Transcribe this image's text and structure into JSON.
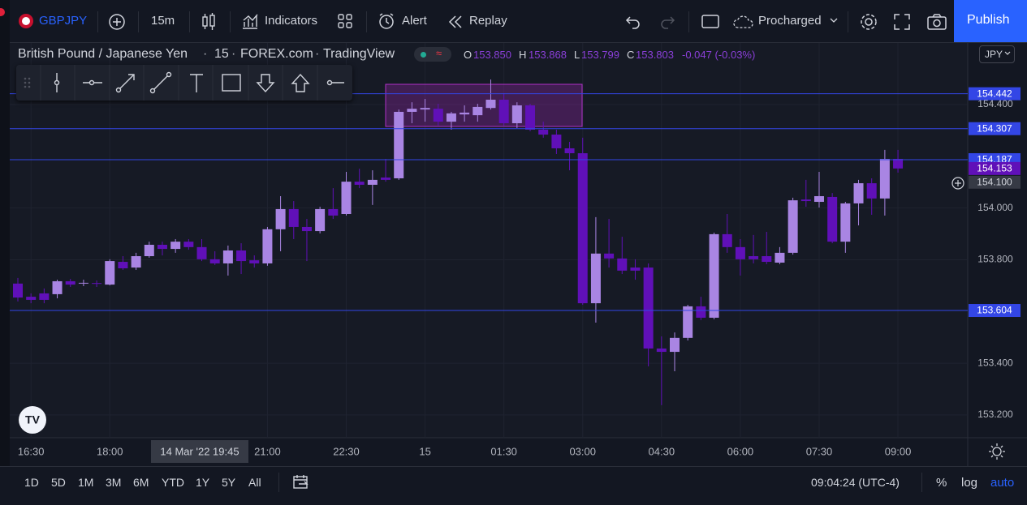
{
  "toolbar": {
    "symbol": "GBPJPY",
    "interval": "15m",
    "indicators": "Indicators",
    "alert": "Alert",
    "replay": "Replay",
    "layout": "Procharged",
    "publish": "Publish"
  },
  "legend": {
    "name": "British Pound / Japanese Yen",
    "interval": "15",
    "exchange": "FOREX.com",
    "source": "TradingView",
    "open_label": "O",
    "open": "153.850",
    "high_label": "H",
    "high": "153.868",
    "low_label": "L",
    "low": "153.799",
    "close_label": "C",
    "close": "153.803",
    "change": "-0.047 (-0.03%)"
  },
  "currency": "JPY",
  "chart_data": {
    "type": "candlestick",
    "categories": [
      null,
      "16:30",
      null,
      null,
      null,
      null,
      null,
      "18:00",
      null,
      null,
      null,
      null,
      null,
      null,
      null,
      null,
      null,
      null,
      null,
      "21:00",
      null,
      null,
      null,
      null,
      null,
      "22:30",
      null,
      null,
      null,
      null,
      null,
      "15",
      null,
      null,
      null,
      null,
      null,
      "01:30",
      null,
      null,
      null,
      null,
      null,
      "03:00",
      null,
      null,
      null,
      null,
      null,
      "04:30",
      null,
      null,
      null,
      null,
      null,
      "06:00",
      null,
      null,
      null,
      null,
      null,
      "07:30",
      null,
      null,
      null,
      null,
      null,
      "09:00"
    ],
    "open": [
      153.708,
      153.657,
      153.67,
      153.667,
      153.717,
      153.708,
      153.71,
      153.704,
      153.792,
      153.77,
      153.814,
      153.858,
      153.842,
      153.87,
      153.849,
      153.802,
      153.786,
      153.836,
      153.798,
      153.786,
      153.918,
      153.996,
      153.927,
      153.911,
      153.996,
      153.977,
      154.102,
      154.09,
      154.118,
      154.115,
      154.372,
      154.381,
      154.384,
      154.334,
      154.362,
      154.359,
      154.387,
      154.419,
      154.328,
      154.397,
      154.303,
      154.284,
      154.231,
      154.212,
      153.632,
      153.824,
      153.805,
      153.77,
      153.77,
      153.457,
      153.444,
      153.498,
      153.62,
      153.576,
      153.899,
      153.849,
      153.814,
      153.814,
      153.789,
      153.827,
      154.033,
      154.024,
      154.043,
      153.87,
      154.018,
      154.096,
      154.037,
      154.19
    ],
    "high": [
      153.73,
      153.67,
      153.689,
      153.723,
      153.726,
      153.723,
      153.72,
      153.802,
      153.814,
      153.827,
      153.87,
      153.87,
      153.88,
      153.88,
      153.88,
      153.833,
      153.855,
      153.864,
      153.817,
      153.927,
      154.046,
      154.027,
      153.958,
      154.005,
      154.077,
      154.14,
      154.152,
      154.146,
      154.19,
      154.381,
      154.409,
      154.422,
      154.403,
      154.372,
      154.397,
      154.403,
      154.497,
      154.444,
      154.409,
      154.403,
      154.334,
      154.303,
      154.256,
      154.272,
      153.965,
      153.958,
      153.889,
      153.802,
      153.786,
      153.504,
      153.519,
      153.626,
      153.657,
      153.905,
      153.977,
      153.88,
      153.896,
      153.908,
      153.849,
      154.04,
      154.109,
      154.14,
      154.058,
      154.024,
      154.109,
      154.115,
      154.225,
      154.225
    ],
    "low": [
      153.639,
      153.632,
      153.632,
      153.651,
      153.695,
      153.698,
      153.695,
      153.701,
      153.761,
      153.761,
      153.808,
      153.817,
      153.827,
      153.839,
      153.795,
      153.78,
      153.739,
      153.745,
      153.77,
      153.777,
      153.833,
      153.88,
      153.795,
      153.902,
      153.958,
      153.971,
      154.077,
      154.012,
      154.102,
      154.109,
      154.328,
      154.334,
      154.319,
      154.303,
      154.334,
      154.334,
      154.381,
      154.319,
      154.309,
      154.297,
      154.272,
      154.209,
      154.146,
      153.626,
      153.557,
      153.77,
      153.745,
      153.723,
      153.388,
      153.238,
      153.369,
      153.488,
      153.567,
      153.57,
      153.827,
      153.739,
      153.786,
      153.783,
      153.783,
      153.82,
      154.005,
      154.002,
      153.864,
      153.827,
      153.933,
      153.974,
      153.971,
      154.137
    ],
    "close": [
      153.654,
      153.645,
      153.645,
      153.717,
      153.704,
      153.711,
      153.707,
      153.795,
      153.767,
      153.814,
      153.858,
      153.842,
      153.87,
      153.849,
      153.802,
      153.786,
      153.836,
      153.795,
      153.786,
      153.918,
      153.996,
      153.927,
      153.911,
      153.996,
      153.971,
      154.102,
      154.09,
      154.109,
      154.109,
      154.372,
      154.384,
      154.387,
      154.334,
      154.366,
      154.369,
      154.391,
      154.419,
      154.328,
      154.397,
      154.303,
      154.284,
      154.231,
      154.212,
      153.632,
      153.824,
      153.805,
      153.758,
      153.758,
      153.457,
      153.444,
      153.498,
      153.62,
      153.576,
      153.899,
      153.849,
      153.802,
      153.802,
      153.792,
      153.827,
      154.03,
      154.027,
      154.046,
      153.87,
      154.018,
      154.096,
      154.037,
      154.19,
      154.153
    ],
    "up_color": "#a985e3",
    "down_color": "#6010b8",
    "ylim": [
      153.112,
      154.654
    ],
    "yticks": [
      {
        "value": 153.2,
        "label": "153.200"
      },
      {
        "value": 153.4,
        "label": "153.400"
      },
      {
        "value": 153.8,
        "label": "153.800"
      },
      {
        "value": 154.0,
        "label": "154.000"
      },
      {
        "value": 154.4,
        "label": "154.400"
      }
    ],
    "grid": true,
    "hlines": [
      {
        "value": 154.442,
        "label": "154.442"
      },
      {
        "value": 154.307,
        "label": "154.307"
      },
      {
        "value": 154.187,
        "label": "154.187"
      },
      {
        "value": 153.604,
        "label": "153.604"
      }
    ],
    "hline_color": "#3346e6",
    "last_price": {
      "value": 154.153,
      "label": "154.153"
    },
    "crosshair_price": {
      "value": 154.1,
      "label": "154.100"
    },
    "crosshair_time": "14 Mar '22 19:45"
  },
  "bottom_bar": {
    "ranges": [
      "1D",
      "5D",
      "1M",
      "3M",
      "6M",
      "YTD",
      "1Y",
      "5Y",
      "All"
    ],
    "clock": "09:04:24 (UTC-4)",
    "percent": "%",
    "log": "log",
    "auto": "auto"
  }
}
